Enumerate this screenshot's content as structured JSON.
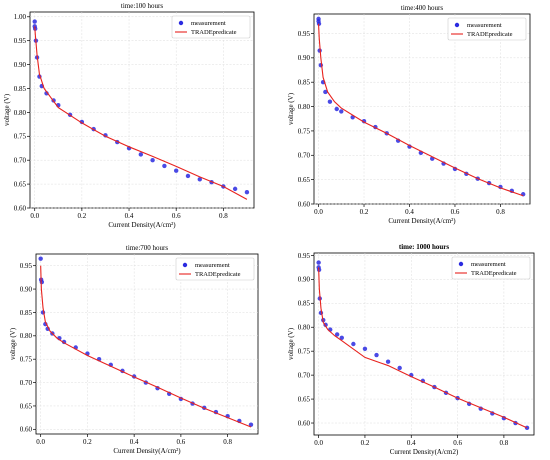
{
  "chart_data": [
    {
      "type": "scatter",
      "title": "time:100 hours",
      "title_bold": false,
      "xlabel": "Current Density(A/cm²)",
      "ylabel": "voltage (V)",
      "xlim": [
        -0.02,
        0.93
      ],
      "ylim": [
        0.6,
        1.01
      ],
      "xticks": [
        0.0,
        0.2,
        0.4,
        0.6,
        0.8
      ],
      "xtick_labels": [
        "0.0",
        "0.2",
        "0.4",
        "0.6",
        "0.8"
      ],
      "yticks": [
        0.6,
        0.65,
        0.7,
        0.75,
        0.8,
        0.85,
        0.9,
        0.95,
        1.0
      ],
      "ytick_labels": [
        "0.60",
        "0.65",
        "0.70",
        "0.75",
        "0.80",
        "0.85",
        "0.90",
        "0.95",
        "1.00"
      ],
      "grid": true,
      "legend_position": "top-right",
      "series": [
        {
          "name": "measurement",
          "kind": "scatter",
          "color": "#2a2ae0",
          "x": [
            0.0,
            0.0,
            0.002,
            0.005,
            0.01,
            0.02,
            0.03,
            0.05,
            0.08,
            0.1,
            0.15,
            0.2,
            0.25,
            0.3,
            0.35,
            0.4,
            0.45,
            0.5,
            0.55,
            0.6,
            0.65,
            0.7,
            0.75,
            0.8,
            0.85,
            0.9
          ],
          "y": [
            0.99,
            0.98,
            0.975,
            0.95,
            0.915,
            0.875,
            0.855,
            0.84,
            0.825,
            0.815,
            0.795,
            0.78,
            0.765,
            0.752,
            0.738,
            0.725,
            0.712,
            0.7,
            0.688,
            0.678,
            0.667,
            0.66,
            0.654,
            0.645,
            0.64,
            0.633
          ]
        },
        {
          "name": "TRADEpredicate",
          "kind": "line",
          "color": "#e8231e",
          "x": [
            0.0,
            0.003,
            0.01,
            0.02,
            0.04,
            0.07,
            0.1,
            0.2,
            0.3,
            0.4,
            0.5,
            0.6,
            0.7,
            0.8,
            0.9
          ],
          "y": [
            0.98,
            0.96,
            0.92,
            0.88,
            0.85,
            0.83,
            0.81,
            0.778,
            0.75,
            0.728,
            0.708,
            0.687,
            0.665,
            0.645,
            0.618
          ]
        }
      ]
    },
    {
      "type": "scatter",
      "title": "time:400 hours",
      "title_bold": false,
      "xlabel": "Current Density(A/cm²)",
      "ylabel": "voltage (V)",
      "xlim": [
        -0.02,
        0.93
      ],
      "ylim": [
        0.6,
        0.99
      ],
      "xticks": [
        0.0,
        0.2,
        0.4,
        0.6,
        0.8
      ],
      "xtick_labels": [
        "0.0",
        "0.2",
        "0.4",
        "0.6",
        "0.8"
      ],
      "yticks": [
        0.6,
        0.65,
        0.7,
        0.75,
        0.8,
        0.85,
        0.9,
        0.95
      ],
      "ytick_labels": [
        "0.60",
        "0.65",
        "0.70",
        "0.75",
        "0.80",
        "0.85",
        "0.90",
        "0.95"
      ],
      "grid": true,
      "legend_position": "top-right",
      "series": [
        {
          "name": "measurement",
          "kind": "scatter",
          "color": "#2a2ae0",
          "x": [
            0.0,
            0.0,
            0.002,
            0.005,
            0.01,
            0.02,
            0.03,
            0.05,
            0.08,
            0.1,
            0.15,
            0.2,
            0.25,
            0.3,
            0.35,
            0.4,
            0.45,
            0.5,
            0.55,
            0.6,
            0.65,
            0.7,
            0.75,
            0.8,
            0.85,
            0.9
          ],
          "y": [
            0.98,
            0.975,
            0.97,
            0.915,
            0.885,
            0.85,
            0.83,
            0.81,
            0.795,
            0.79,
            0.778,
            0.77,
            0.758,
            0.745,
            0.73,
            0.718,
            0.705,
            0.693,
            0.683,
            0.672,
            0.662,
            0.652,
            0.643,
            0.635,
            0.627,
            0.62
          ]
        },
        {
          "name": "TRADEpredicate",
          "kind": "line",
          "color": "#e8231e",
          "x": [
            0.0,
            0.003,
            0.01,
            0.02,
            0.04,
            0.07,
            0.1,
            0.2,
            0.3,
            0.4,
            0.5,
            0.6,
            0.7,
            0.8,
            0.9
          ],
          "y": [
            0.97,
            0.94,
            0.9,
            0.86,
            0.83,
            0.81,
            0.797,
            0.768,
            0.745,
            0.72,
            0.697,
            0.674,
            0.652,
            0.633,
            0.617
          ]
        }
      ]
    },
    {
      "type": "scatter",
      "title": "time:700 hours",
      "title_bold": false,
      "xlabel": "Current Density(A/cm²)",
      "ylabel": "voltage (V)",
      "xlim": [
        -0.02,
        0.93
      ],
      "ylim": [
        0.59,
        0.975
      ],
      "xticks": [
        0.0,
        0.2,
        0.4,
        0.6,
        0.8
      ],
      "xtick_labels": [
        "0.0",
        "0.2",
        "0.4",
        "0.6",
        "0.8"
      ],
      "yticks": [
        0.6,
        0.65,
        0.7,
        0.75,
        0.8,
        0.85,
        0.9,
        0.95
      ],
      "ytick_labels": [
        "0.60",
        "0.65",
        "0.70",
        "0.75",
        "0.80",
        "0.85",
        "0.90",
        "0.95"
      ],
      "grid": true,
      "legend_position": "top-right",
      "series": [
        {
          "name": "measurement",
          "kind": "scatter",
          "color": "#2a2ae0",
          "x": [
            0.0,
            0.002,
            0.005,
            0.01,
            0.02,
            0.03,
            0.05,
            0.08,
            0.1,
            0.15,
            0.2,
            0.25,
            0.3,
            0.35,
            0.4,
            0.45,
            0.5,
            0.55,
            0.6,
            0.65,
            0.7,
            0.75,
            0.8,
            0.85,
            0.9
          ],
          "y": [
            0.965,
            0.92,
            0.915,
            0.85,
            0.825,
            0.815,
            0.805,
            0.795,
            0.787,
            0.775,
            0.762,
            0.75,
            0.738,
            0.725,
            0.713,
            0.7,
            0.688,
            0.676,
            0.665,
            0.655,
            0.646,
            0.637,
            0.628,
            0.618,
            0.61
          ]
        },
        {
          "name": "TRADEpredicate",
          "kind": "line",
          "color": "#e8231e",
          "x": [
            0.0,
            0.003,
            0.01,
            0.02,
            0.04,
            0.07,
            0.1,
            0.2,
            0.3,
            0.4,
            0.5,
            0.6,
            0.7,
            0.8,
            0.9
          ],
          "y": [
            0.95,
            0.9,
            0.86,
            0.83,
            0.81,
            0.795,
            0.785,
            0.758,
            0.735,
            0.712,
            0.69,
            0.667,
            0.645,
            0.625,
            0.605
          ]
        }
      ]
    },
    {
      "type": "scatter",
      "title": "time: 1000 hours",
      "title_bold": true,
      "xlabel": "Current Density(A/cm2)",
      "ylabel": "voltage (V)",
      "xlim": [
        -0.02,
        0.93
      ],
      "ylim": [
        0.575,
        0.955
      ],
      "xticks": [
        0.0,
        0.2,
        0.4,
        0.6,
        0.8
      ],
      "xtick_labels": [
        "0.0",
        "0.2",
        "0.4",
        "0.6",
        "0.8"
      ],
      "yticks": [
        0.6,
        0.65,
        0.7,
        0.75,
        0.8,
        0.85,
        0.9,
        0.95
      ],
      "ytick_labels": [
        "0.60",
        "0.65",
        "0.70",
        "0.75",
        "0.80",
        "0.85",
        "0.90",
        "0.95"
      ],
      "grid": true,
      "legend_position": "top-right",
      "series": [
        {
          "name": "measurement",
          "kind": "scatter",
          "color": "#2a2ae0",
          "x": [
            0.0,
            0.0,
            0.002,
            0.005,
            0.01,
            0.02,
            0.03,
            0.05,
            0.08,
            0.1,
            0.15,
            0.2,
            0.25,
            0.3,
            0.35,
            0.4,
            0.45,
            0.5,
            0.55,
            0.6,
            0.65,
            0.7,
            0.75,
            0.8,
            0.85,
            0.9
          ],
          "y": [
            0.935,
            0.925,
            0.92,
            0.86,
            0.83,
            0.815,
            0.805,
            0.795,
            0.785,
            0.778,
            0.765,
            0.755,
            0.742,
            0.728,
            0.715,
            0.7,
            0.688,
            0.675,
            0.663,
            0.652,
            0.64,
            0.63,
            0.62,
            0.61,
            0.6,
            0.59
          ]
        },
        {
          "name": "TRADEpredicate",
          "kind": "line",
          "color": "#e8231e",
          "x": [
            0.0,
            0.003,
            0.01,
            0.02,
            0.04,
            0.07,
            0.1,
            0.2,
            0.3,
            0.4,
            0.5,
            0.6,
            0.7,
            0.8,
            0.9
          ],
          "y": [
            0.925,
            0.88,
            0.84,
            0.81,
            0.795,
            0.782,
            0.772,
            0.737,
            0.72,
            0.697,
            0.675,
            0.652,
            0.632,
            0.612,
            0.59
          ]
        }
      ]
    }
  ]
}
